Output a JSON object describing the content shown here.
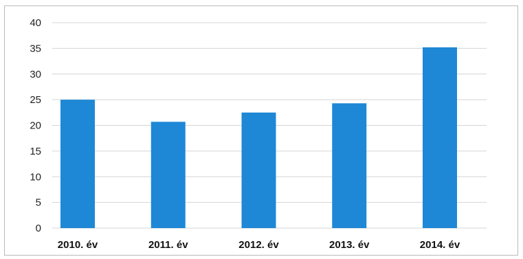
{
  "chart_data": {
    "type": "bar",
    "categories": [
      "2010. év",
      "2011. év",
      "2012. év",
      "2013. év",
      "2014. év"
    ],
    "values": [
      25,
      20.7,
      22.5,
      24.3,
      35.2
    ],
    "title": "",
    "xlabel": "",
    "ylabel": "",
    "ylim": [
      0,
      40
    ],
    "yticks": [
      0,
      5,
      10,
      15,
      20,
      25,
      30,
      35,
      40
    ],
    "grid": true,
    "legend": "none",
    "bar_color": "#1e88d6",
    "grid_color": "#d4d4d4"
  }
}
